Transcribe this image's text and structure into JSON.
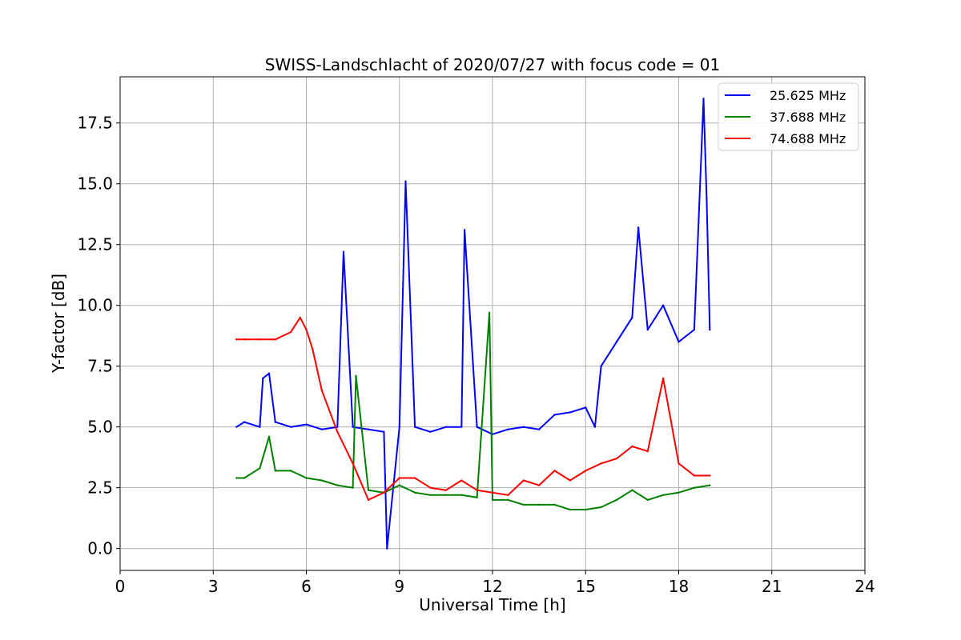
{
  "chart_data": {
    "type": "line",
    "title": "SWISS-Landschlacht of 2020/07/27 with focus code = 01",
    "xlabel": "Universal Time [h]",
    "ylabel": "Y-factor [dB]",
    "xlim": [
      0,
      24
    ],
    "ylim": [
      -0.9,
      19.4
    ],
    "xticks": [
      0,
      3,
      6,
      9,
      12,
      15,
      18,
      21,
      24
    ],
    "yticks": [
      0.0,
      2.5,
      5.0,
      7.5,
      10.0,
      12.5,
      15.0,
      17.5
    ],
    "xtick_labels": [
      "0",
      "3",
      "6",
      "9",
      "12",
      "15",
      "18",
      "21",
      "24"
    ],
    "ytick_labels": [
      "0.0",
      "2.5",
      "5.0",
      "7.5",
      "10.0",
      "12.5",
      "15.0",
      "17.5"
    ],
    "grid": true,
    "legend_position": "top-right",
    "series": [
      {
        "name": "25.625 MHz",
        "color": "#0000ff",
        "x": [
          3.75,
          4.0,
          4.5,
          4.6,
          4.8,
          5.0,
          5.5,
          6.0,
          6.5,
          7.0,
          7.2,
          7.5,
          8.0,
          8.5,
          8.6,
          9.0,
          9.2,
          9.5,
          10.0,
          10.5,
          11.0,
          11.1,
          11.5,
          12.0,
          12.5,
          13.0,
          13.5,
          14.0,
          14.5,
          15.0,
          15.3,
          15.5,
          16.0,
          16.5,
          16.7,
          17.0,
          17.5,
          18.0,
          18.5,
          18.8,
          18.9,
          19.0
        ],
        "values": [
          5.0,
          5.2,
          5.0,
          7.0,
          7.2,
          5.2,
          5.0,
          5.1,
          4.9,
          5.0,
          12.2,
          5.0,
          4.9,
          4.8,
          0.0,
          5.0,
          15.1,
          5.0,
          4.8,
          5.0,
          5.0,
          13.1,
          5.0,
          4.7,
          4.9,
          5.0,
          4.9,
          5.5,
          5.6,
          5.8,
          5.0,
          7.5,
          8.5,
          9.5,
          13.2,
          9.0,
          10.0,
          8.5,
          9.0,
          18.5,
          14.4,
          9.0
        ]
      },
      {
        "name": "37.688 MHz",
        "color": "#008000",
        "x": [
          3.75,
          4.0,
          4.5,
          4.8,
          5.0,
          5.5,
          6.0,
          6.5,
          7.0,
          7.5,
          7.6,
          8.0,
          8.5,
          9.0,
          9.5,
          10.0,
          10.5,
          11.0,
          11.5,
          11.9,
          12.0,
          12.5,
          13.0,
          13.5,
          14.0,
          14.5,
          15.0,
          15.5,
          16.0,
          16.5,
          17.0,
          17.5,
          18.0,
          18.5,
          19.0
        ],
        "values": [
          2.9,
          2.9,
          3.3,
          4.6,
          3.2,
          3.2,
          2.9,
          2.8,
          2.6,
          2.5,
          7.1,
          2.4,
          2.3,
          2.6,
          2.3,
          2.2,
          2.2,
          2.2,
          2.1,
          9.7,
          2.0,
          2.0,
          1.8,
          1.8,
          1.8,
          1.6,
          1.6,
          1.7,
          2.0,
          2.4,
          2.0,
          2.2,
          2.3,
          2.5,
          2.6
        ]
      },
      {
        "name": "74.688 MHz",
        "color": "#ff0000",
        "x": [
          3.75,
          4.0,
          4.5,
          5.0,
          5.5,
          5.8,
          6.0,
          6.2,
          6.5,
          7.0,
          7.5,
          8.0,
          8.5,
          9.0,
          9.5,
          10.0,
          10.5,
          11.0,
          11.5,
          12.0,
          12.5,
          13.0,
          13.5,
          14.0,
          14.5,
          15.0,
          15.5,
          16.0,
          16.5,
          17.0,
          17.5,
          18.0,
          18.5,
          19.0
        ],
        "values": [
          8.6,
          8.6,
          8.6,
          8.6,
          8.9,
          9.5,
          9.0,
          8.2,
          6.5,
          4.8,
          3.5,
          2.0,
          2.3,
          2.9,
          2.9,
          2.5,
          2.4,
          2.8,
          2.4,
          2.3,
          2.2,
          2.8,
          2.6,
          3.2,
          2.8,
          3.2,
          3.5,
          3.7,
          4.2,
          4.0,
          7.0,
          3.5,
          3.0,
          3.0
        ]
      }
    ]
  }
}
